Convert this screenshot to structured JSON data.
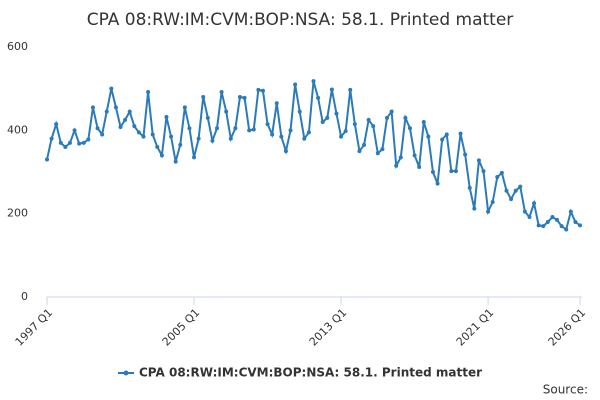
{
  "chart_data": {
    "type": "line",
    "title": "CPA 08:RW:IM:CVM:BOP:NSA: 58.1. Printed matter",
    "source": "Source:",
    "categories": [
      "1997 Q1",
      null,
      null,
      null,
      null,
      null,
      null,
      null,
      null,
      null,
      null,
      null,
      null,
      null,
      null,
      null,
      null,
      null,
      null,
      null,
      null,
      null,
      null,
      null,
      null,
      null,
      null,
      null,
      null,
      null,
      null,
      null,
      "2005 Q1",
      null,
      null,
      null,
      null,
      null,
      null,
      null,
      null,
      null,
      null,
      null,
      null,
      null,
      null,
      null,
      null,
      null,
      null,
      null,
      null,
      null,
      null,
      null,
      null,
      null,
      null,
      null,
      null,
      null,
      null,
      null,
      "2013 Q1",
      null,
      null,
      null,
      null,
      null,
      null,
      null,
      null,
      null,
      null,
      null,
      null,
      null,
      null,
      null,
      null,
      null,
      null,
      null,
      null,
      null,
      null,
      null,
      null,
      null,
      null,
      null,
      null,
      null,
      null,
      null,
      "2021 Q1",
      null,
      null,
      null,
      null,
      null,
      null,
      null,
      null,
      null,
      null,
      null,
      null,
      null,
      null,
      null,
      null,
      null,
      null,
      null,
      "2026 Q1"
    ],
    "series": [
      {
        "name": "CPA 08:RW:IM:CVM:BOP:NSA: 58.1. Printed matter",
        "color": "#2b7bba",
        "values": [
          330,
          380,
          415,
          370,
          360,
          370,
          400,
          368,
          370,
          378,
          455,
          405,
          390,
          445,
          500,
          455,
          408,
          425,
          445,
          410,
          395,
          385,
          492,
          390,
          360,
          340,
          432,
          385,
          325,
          365,
          455,
          405,
          335,
          380,
          480,
          430,
          375,
          405,
          492,
          445,
          380,
          405,
          480,
          478,
          400,
          402,
          497,
          495,
          415,
          390,
          465,
          385,
          350,
          400,
          510,
          445,
          380,
          395,
          518,
          478,
          420,
          430,
          498,
          440,
          385,
          398,
          497,
          415,
          350,
          365,
          425,
          410,
          345,
          355,
          430,
          445,
          315,
          335,
          430,
          405,
          340,
          312,
          420,
          385,
          300,
          272,
          378,
          390,
          302,
          302,
          392,
          342,
          262,
          212,
          328,
          302,
          205,
          228,
          288,
          298,
          255,
          235,
          255,
          265,
          205,
          192,
          225,
          172,
          170,
          180,
          192,
          185,
          170,
          162,
          205,
          180,
          172
        ]
      }
    ],
    "ylim": [
      0,
      600
    ],
    "yticks": [
      0,
      200,
      400,
      600
    ],
    "grid": false
  }
}
